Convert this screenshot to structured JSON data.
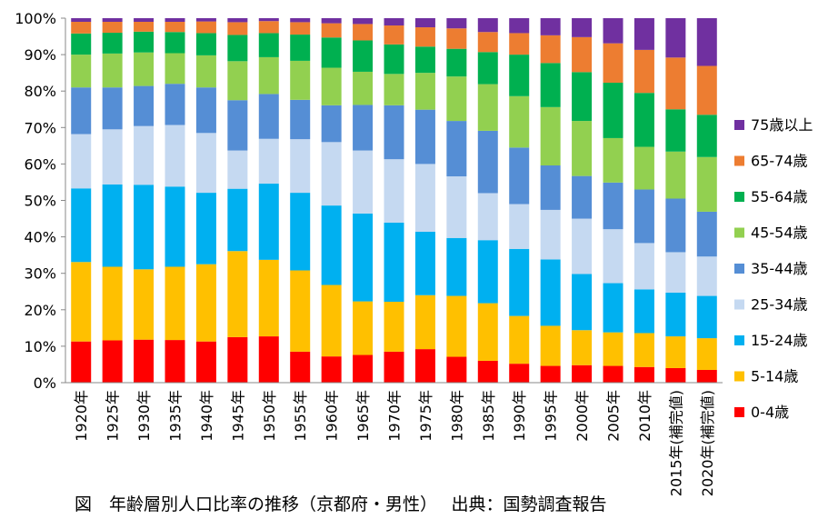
{
  "caption": "図　年齢層別人口比率の推移（京都府・男性）　 出典：国勢調査報告",
  "chart_data": {
    "type": "bar",
    "stacked": true,
    "percent": true,
    "categories": [
      "1920年",
      "1925年",
      "1930年",
      "1935年",
      "1940年",
      "1945年",
      "1950年",
      "1955年",
      "1960年",
      "1965年",
      "1970年",
      "1975年",
      "1980年",
      "1985年",
      "1990年",
      "1995年",
      "2000年",
      "2005年",
      "2010年",
      "2015年(補完値)",
      "2020年(補完値)"
    ],
    "y_ticks": [
      "0%",
      "10%",
      "20%",
      "30%",
      "40%",
      "50%",
      "60%",
      "70%",
      "80%",
      "90%",
      "100%"
    ],
    "ylim": [
      0,
      100
    ],
    "grid": false,
    "legend_position": "right",
    "series": [
      {
        "name": "0-4歳",
        "color": "#ff0000",
        "values": [
          11.3,
          11.6,
          11.8,
          11.7,
          11.3,
          12.5,
          12.7,
          8.5,
          7.2,
          7.6,
          8.5,
          9.2,
          7.1,
          6.0,
          5.2,
          4.6,
          4.8,
          4.6,
          4.3,
          4.0,
          3.5
        ]
      },
      {
        "name": "5-14歳",
        "color": "#ffc000",
        "values": [
          21.8,
          20.2,
          19.3,
          20.1,
          21.2,
          23.6,
          21.0,
          22.3,
          19.6,
          14.7,
          13.7,
          14.8,
          16.7,
          15.8,
          13.1,
          11.0,
          9.6,
          9.2,
          9.3,
          8.7,
          8.7
        ]
      },
      {
        "name": "15-24歳",
        "color": "#00b0f0",
        "values": [
          20.2,
          22.6,
          23.2,
          22.0,
          19.6,
          17.1,
          20.9,
          21.3,
          21.8,
          24.1,
          21.7,
          17.4,
          15.9,
          17.3,
          18.4,
          18.2,
          15.4,
          13.5,
          12.0,
          12.0,
          11.6
        ]
      },
      {
        "name": "25-34歳",
        "color": "#c5d9f1",
        "values": [
          14.9,
          15.1,
          16.1,
          16.9,
          16.4,
          10.5,
          12.3,
          14.7,
          17.4,
          17.3,
          17.4,
          18.6,
          16.9,
          12.9,
          12.3,
          13.6,
          15.2,
          14.8,
          12.7,
          11.1,
          10.8
        ]
      },
      {
        "name": "35-44歳",
        "color": "#558ed5",
        "values": [
          12.8,
          11.5,
          11.0,
          11.3,
          12.5,
          13.8,
          12.3,
          10.8,
          10.1,
          12.5,
          14.8,
          14.9,
          15.2,
          17.1,
          15.5,
          12.2,
          11.7,
          12.8,
          14.7,
          14.7,
          12.3
        ]
      },
      {
        "name": "45-54歳",
        "color": "#92d050",
        "values": [
          9.0,
          9.3,
          9.2,
          8.4,
          8.8,
          10.7,
          10.1,
          10.7,
          10.3,
          9.1,
          8.6,
          10.1,
          12.2,
          12.8,
          14.1,
          16.0,
          15.1,
          12.2,
          11.7,
          12.9,
          15.0
        ]
      },
      {
        "name": "55-64歳",
        "color": "#00b050",
        "values": [
          5.8,
          5.7,
          5.7,
          5.8,
          6.1,
          7.2,
          6.6,
          7.2,
          8.3,
          8.6,
          8.1,
          7.2,
          7.6,
          8.8,
          11.4,
          12.1,
          13.4,
          15.2,
          14.8,
          11.6,
          11.6
        ]
      },
      {
        "name": "65-74歳",
        "color": "#ed7d31",
        "values": [
          3.2,
          3.0,
          2.7,
          2.8,
          3.2,
          3.5,
          3.3,
          3.4,
          3.9,
          4.5,
          5.2,
          5.3,
          5.6,
          5.5,
          5.9,
          7.6,
          9.6,
          10.8,
          11.8,
          14.2,
          13.4
        ]
      },
      {
        "name": "75歳以上",
        "color": "#7030a0",
        "values": [
          1.0,
          1.0,
          1.0,
          1.0,
          0.9,
          1.1,
          0.8,
          1.1,
          1.4,
          1.6,
          2.0,
          2.5,
          2.8,
          3.8,
          4.1,
          4.7,
          5.2,
          6.9,
          8.7,
          10.8,
          13.1
        ]
      }
    ]
  }
}
